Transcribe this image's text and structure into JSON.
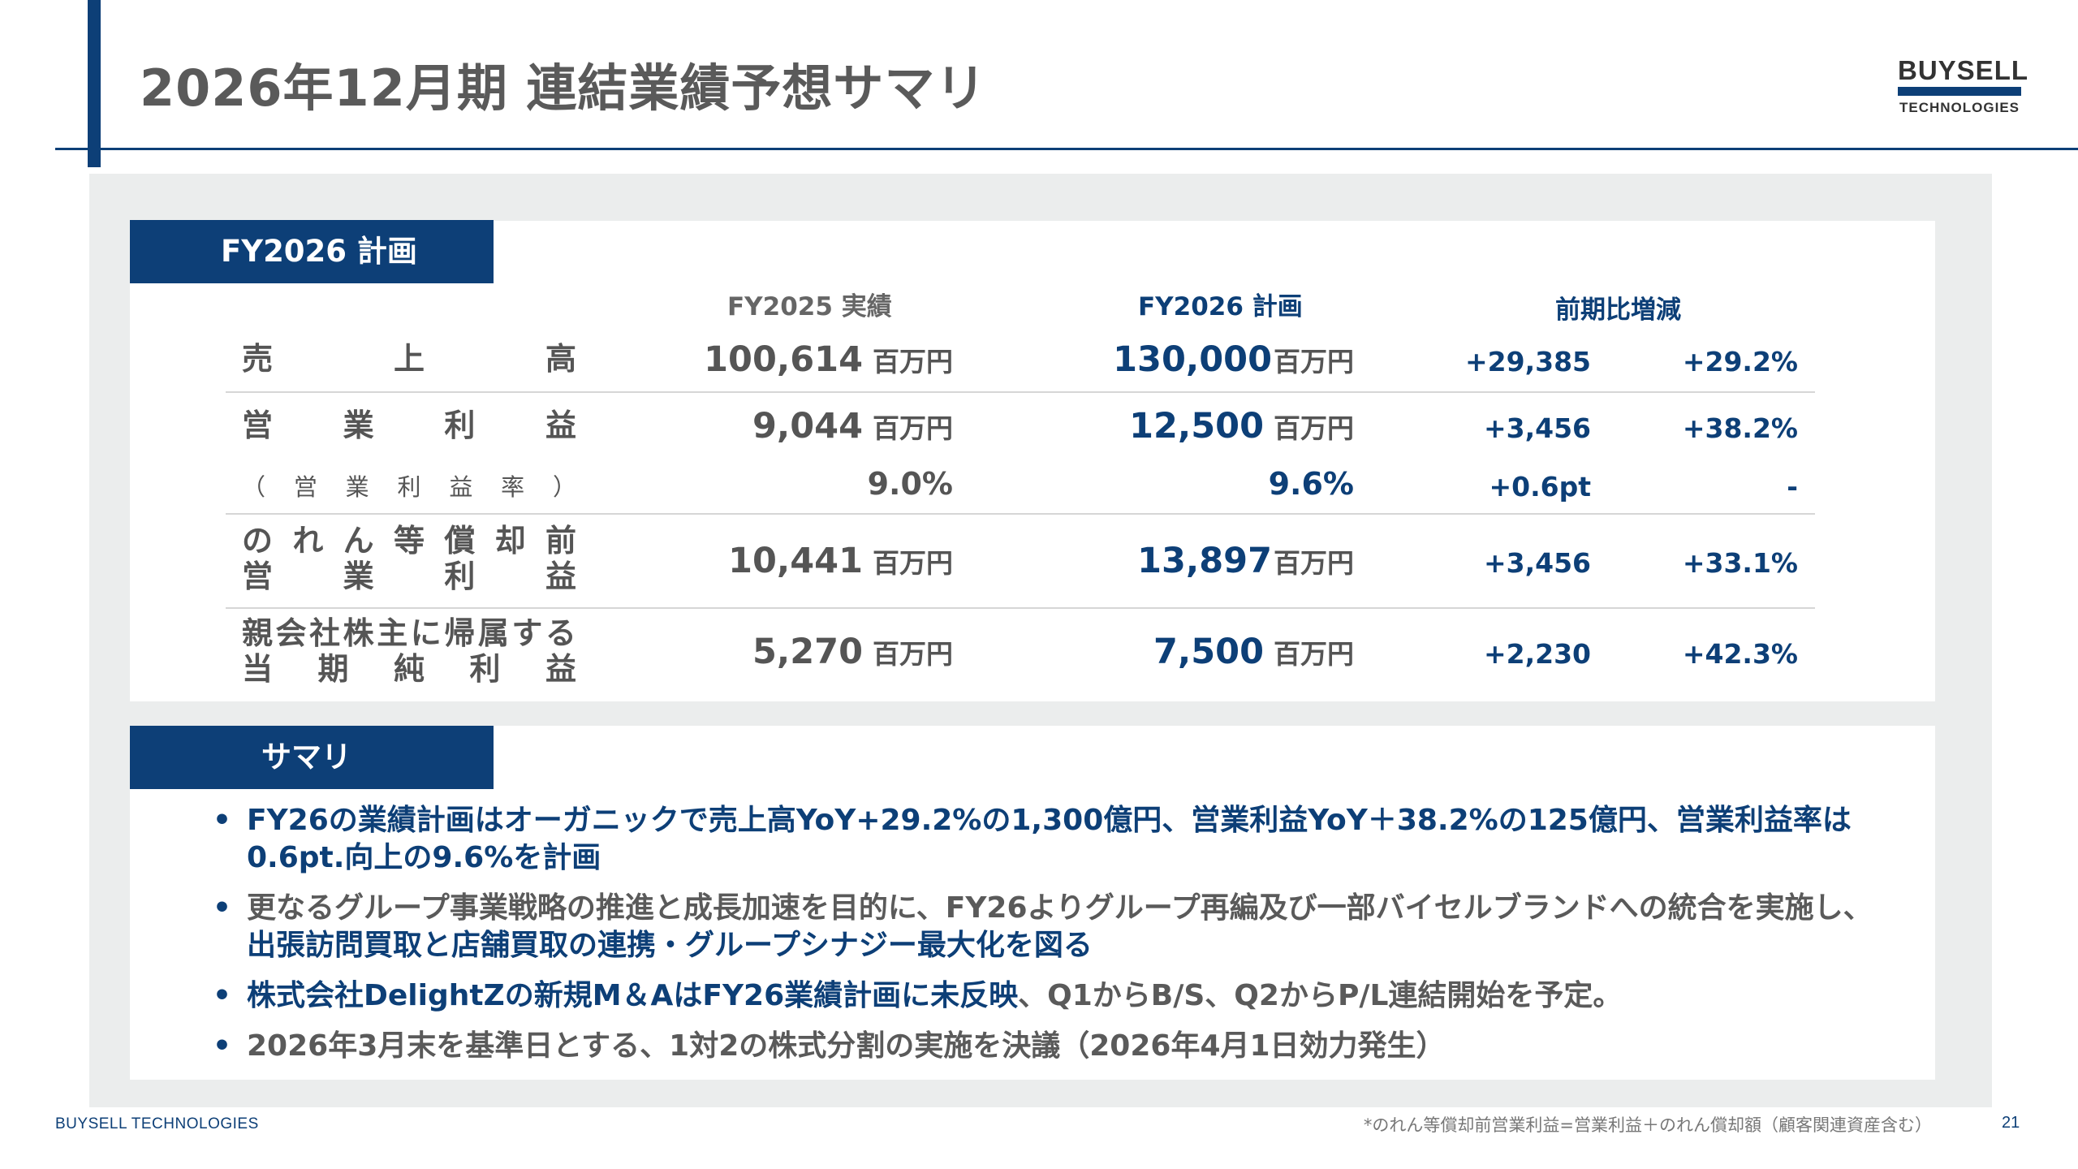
{
  "slide": {
    "title": "2026年12月期 連結業績予想サマリ",
    "page_number": "21",
    "footer_company": "BUYSELL TECHNOLOGIES",
    "footnote": "*のれん等償却前営業利益=営業利益＋のれん償却額（顧客関連資産含む）"
  },
  "logo": {
    "line1": "BUYSELL",
    "line2": "TECHNOLOGIES"
  },
  "plan_section": {
    "tab_label": "FY2026 計画",
    "columns": {
      "fy2025": "FY2025 実績",
      "fy2026": "FY2026 計画",
      "change": "前期比増減"
    },
    "rows": [
      {
        "label_lines": [
          "売上高"
        ],
        "fy2025": "100,614",
        "fy2025_unit": "百万円",
        "fy2026": "130,000",
        "fy2026_unit": "百万円",
        "diff": "+29,385",
        "rate": "+29.2%"
      },
      {
        "label_lines": [
          "営業利益"
        ],
        "fy2025": "9,044",
        "fy2025_unit": "百万円",
        "fy2026": "12,500",
        "fy2026_unit": "百万円",
        "diff": "+3,456",
        "rate": "+38.2%"
      },
      {
        "label_lines": [
          "（営業利益率）"
        ],
        "fy2025": "9.0%",
        "fy2026": "9.6%",
        "diff": "+0.6pt",
        "rate": "-"
      },
      {
        "label_lines": [
          "のれん等償却前",
          "営業利益"
        ],
        "fy2025": "10,441",
        "fy2025_unit": "百万円",
        "fy2026": "13,897",
        "fy2026_unit": "百万円",
        "diff": "+3,456",
        "rate": "+33.1%"
      },
      {
        "label_lines": [
          "親会社株主に帰属する",
          "当期純利益"
        ],
        "fy2025": "5,270",
        "fy2025_unit": "百万円",
        "fy2026": "7,500",
        "fy2026_unit": "百万円",
        "diff": "+2,230",
        "rate": "+42.3%"
      }
    ]
  },
  "summary_section": {
    "tab_label": "サマリ",
    "bullets": [
      {
        "segments": [
          {
            "text": "FY26の業績計画はオーガニックで売上高YoY+29.2%の1,300億円、営業利益YoY＋38.2%の125億円、営業利益率は0.6pt.向上の9.6%を計画",
            "style": "blue"
          }
        ]
      },
      {
        "segments": [
          {
            "text": "更なるグループ事業戦略の推進と成長加速を目的に、FY26よりグループ再編及び一部バイセルブランドへの統合を実施し、",
            "style": "gray"
          },
          {
            "text": "出張訪問買取と店舗買取の連携・グループシナジー最大化を図る",
            "style": "blue"
          }
        ]
      },
      {
        "segments": [
          {
            "text": "株式会社DelightZの新規M＆AはFY26業績計画に未反映",
            "style": "blue"
          },
          {
            "text": "、Q1からB/S、Q2からP/L連結開始を予定。",
            "style": "gray"
          }
        ]
      },
      {
        "segments": [
          {
            "text": "2026年3月末を基準日とする、1対2の株式分割の実施を決議（2026年4月1日効力発生）",
            "style": "gray"
          }
        ]
      }
    ]
  }
}
